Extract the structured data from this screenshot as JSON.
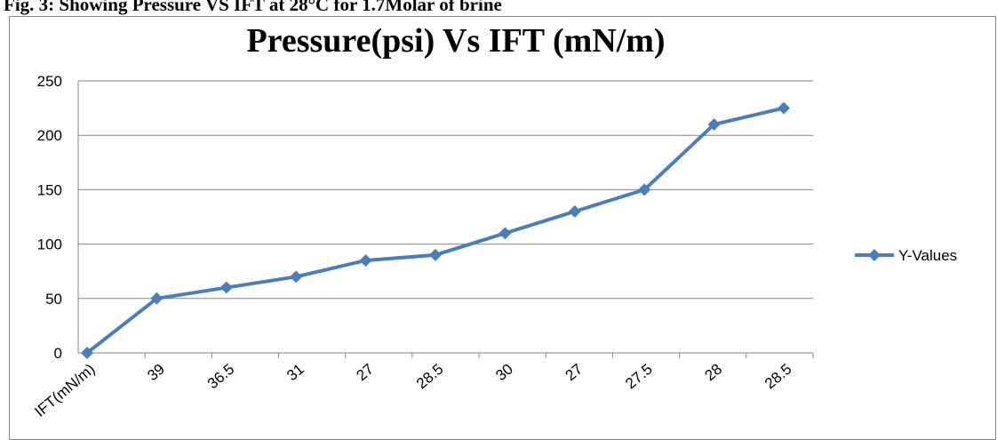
{
  "caption": "Fig. 3: Showing Pressure VS IFT at 28°C for 1.7Molar of brine",
  "chart_data": {
    "type": "line",
    "title": "Pressure(psi) Vs IFT (mN/m)",
    "categories": [
      "IFT(mN/m)",
      "39",
      "36.5",
      "31",
      "27",
      "28.5",
      "30",
      "27",
      "27.5",
      "28",
      "28.5"
    ],
    "series": [
      {
        "name": "Y-Values",
        "color": "#4a7ebb",
        "values": [
          0,
          50,
          60,
          70,
          85,
          90,
          110,
          130,
          150,
          210,
          225
        ]
      }
    ],
    "ylim": [
      0,
      250
    ],
    "yticks": [
      0,
      50,
      100,
      150,
      200,
      250
    ],
    "grid": true,
    "legend": "right"
  }
}
